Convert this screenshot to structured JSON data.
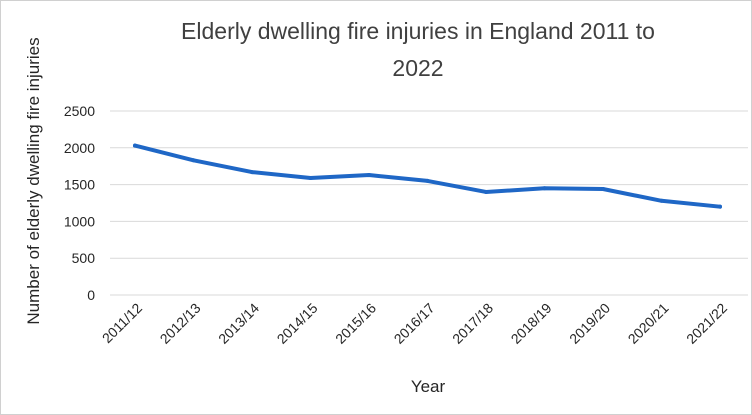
{
  "chart_data": {
    "type": "line",
    "title_lines": [
      "Elderly dwelling fire injuries in England 2011 to",
      "2022"
    ],
    "xlabel": "Year",
    "ylabel": "Number of elderly dwelling fire injuries",
    "categories": [
      "2011/12",
      "2012/13",
      "2013/14",
      "2014/15",
      "2015/16",
      "2016/17",
      "2017/18",
      "2018/19",
      "2019/20",
      "2020/21",
      "2021/22"
    ],
    "series": [
      {
        "values": [
          2030,
          1830,
          1670,
          1590,
          1630,
          1550,
          1400,
          1450,
          1440,
          1280,
          1200
        ],
        "color": "#1f67c6"
      }
    ],
    "ylim": [
      0,
      2500
    ],
    "yticks": [
      "0",
      "500",
      "1000",
      "1500",
      "2000",
      "2500"
    ],
    "grid": true,
    "legend": "none"
  }
}
